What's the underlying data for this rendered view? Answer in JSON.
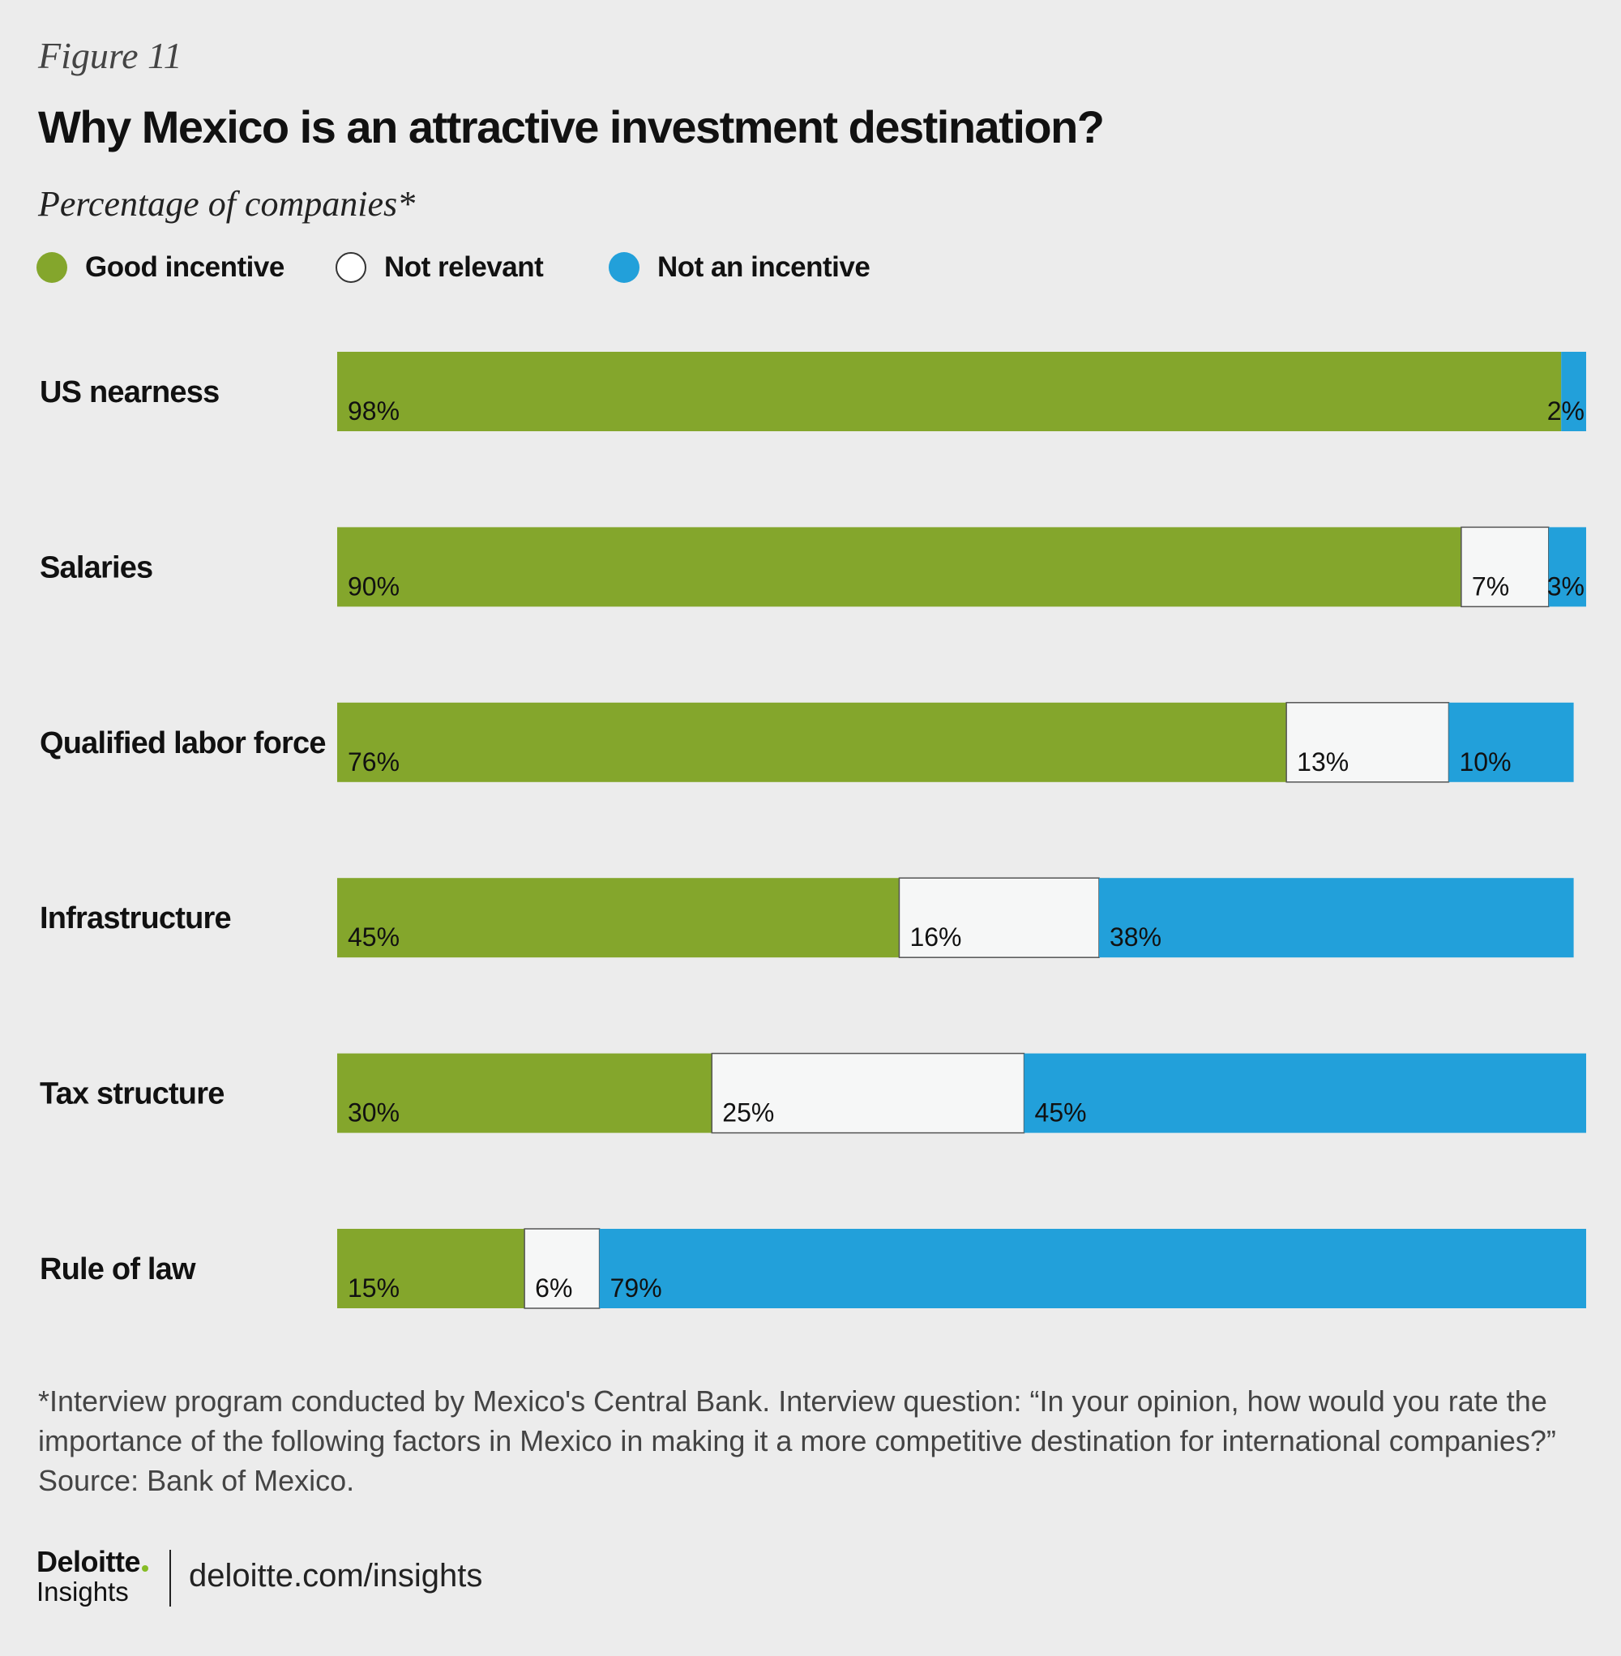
{
  "figure_label": "Figure 11",
  "colors": {
    "good": "#84a62c",
    "not_relevant": "#f6f7f7",
    "not_incentive": "#22a0da",
    "background": "#ececec"
  },
  "chart_data": {
    "type": "bar",
    "orientation": "horizontal",
    "stacked": true,
    "title": "Why Mexico is an attractive investment destination?",
    "subtitle": "Percentage of companies*",
    "categories": [
      "US nearness",
      "Salaries",
      "Qualified labor force",
      "Infrastructure",
      "Tax structure",
      "Rule of law"
    ],
    "series": [
      {
        "name": "Good incentive",
        "key": "good",
        "values": [
          98,
          90,
          76,
          45,
          30,
          15
        ],
        "labels": [
          "98%",
          "90%",
          "76%",
          "45%",
          "30%",
          "15%"
        ]
      },
      {
        "name": "Not relevant",
        "key": "not_relevant",
        "values": [
          0,
          7,
          13,
          16,
          25,
          6
        ],
        "labels": [
          "",
          "7%",
          "13%",
          "16%",
          "25%",
          "6%"
        ]
      },
      {
        "name": "Not an incentive",
        "key": "not_incentive",
        "values": [
          2,
          3,
          10,
          38,
          45,
          79
        ],
        "labels": [
          "2%",
          "3%",
          "10%",
          "38%",
          "45%",
          "79%"
        ]
      }
    ],
    "xlim": [
      0,
      100
    ],
    "legend": "top-left",
    "grid": false
  },
  "footnote": {
    "line1": "*Interview program conducted by Mexico's Central Bank. Interview question: “In your opinion, how would you rate the",
    "line2": "importance of the following factors in Mexico in making it a more competitive destination for international companies?”",
    "line3": "Source: Bank of Mexico."
  },
  "branding": {
    "logo_name": "Deloitte",
    "logo_sub": "Insights",
    "url": "deloitte.com/insights"
  }
}
